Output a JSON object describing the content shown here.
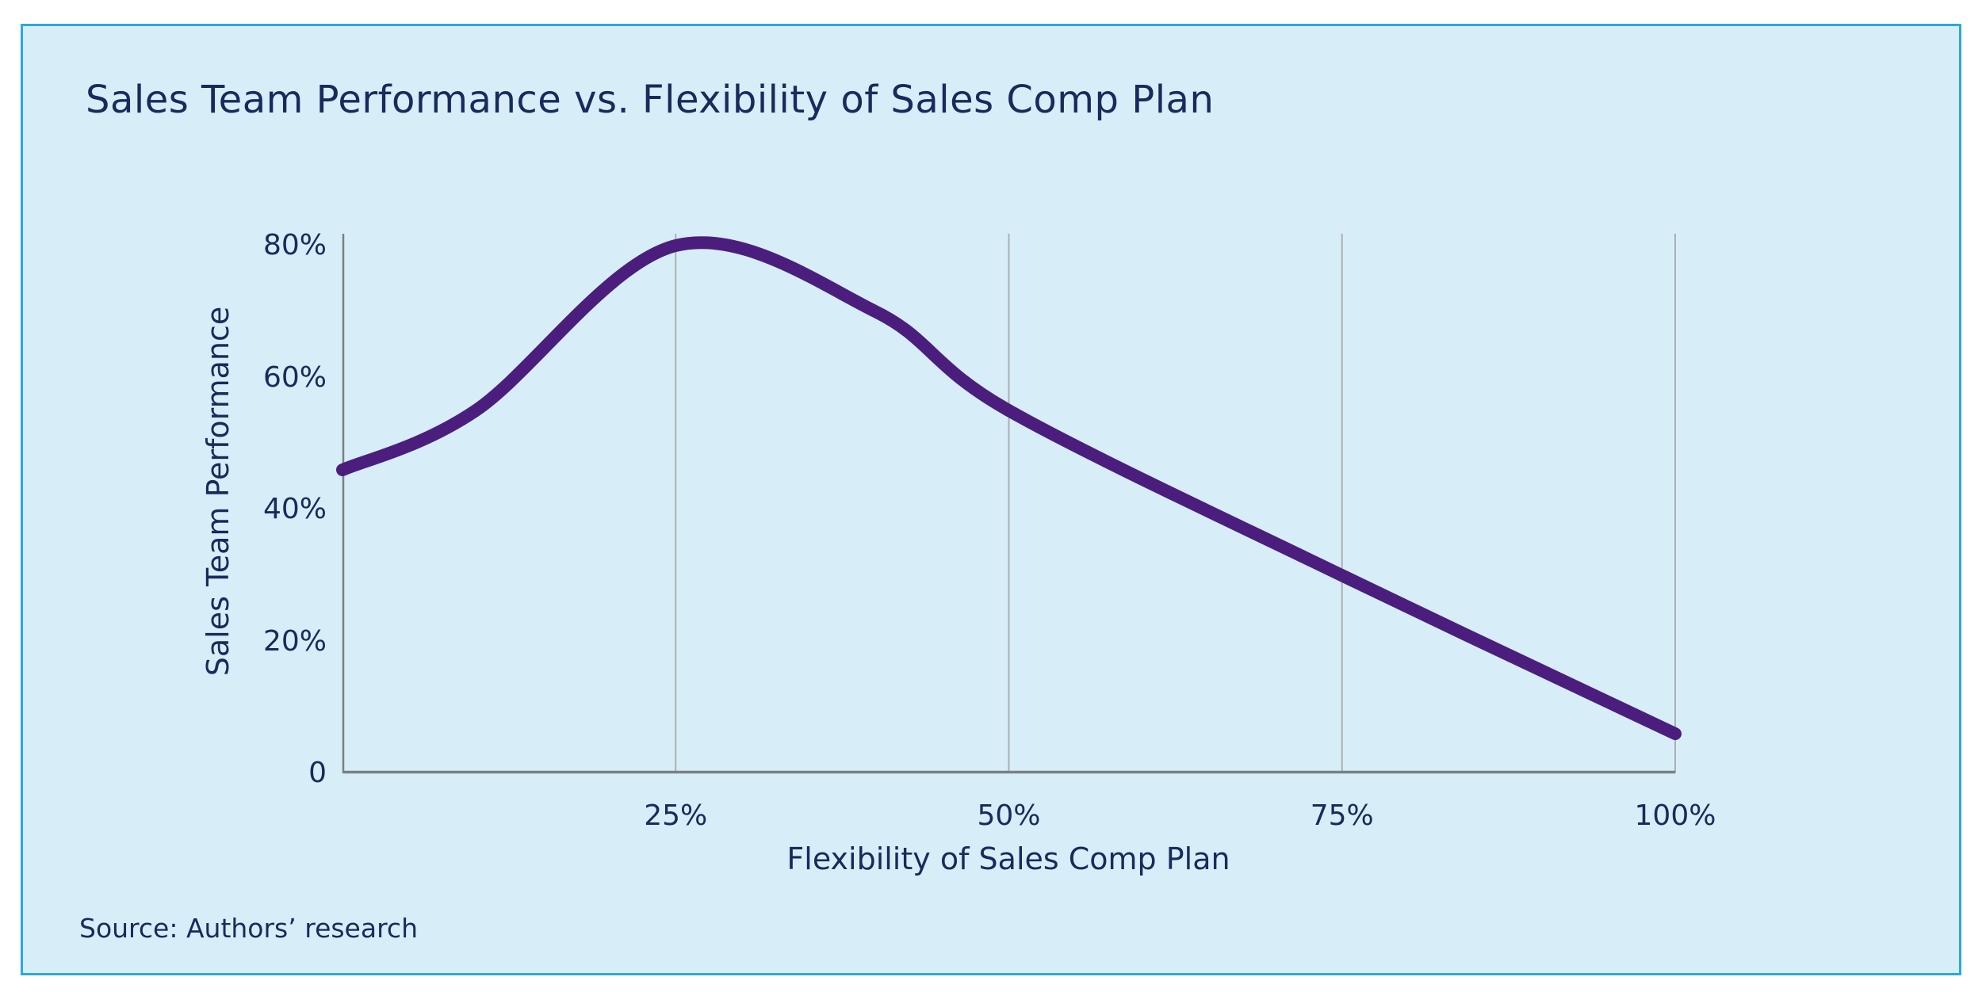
{
  "title": "Sales Team Performance vs. Flexibility of Sales Comp Plan",
  "source": "Source: Authors’ research",
  "colors": {
    "page_background": "#FFFFFF",
    "card_background": "#D7EEF8",
    "card_border": "#29A9E0",
    "text": "#172B5C",
    "line": "#4B1E7E",
    "gridline": "#AFAFAF",
    "axis": "#7A8085"
  },
  "chart_data": {
    "type": "line",
    "title": "Sales Team Performance vs. Flexibility of Sales Comp Plan",
    "xlabel": "Flexibility of Sales Comp Plan",
    "ylabel": "Sales Team Performance",
    "x": [
      0,
      10,
      25,
      40,
      50,
      75,
      100
    ],
    "y": [
      46,
      55,
      80,
      70,
      55,
      30,
      6
    ],
    "xlim": [
      0,
      100
    ],
    "ylim": [
      0,
      80
    ],
    "x_ticks": [
      {
        "value": 25,
        "label": "25%"
      },
      {
        "value": 50,
        "label": "50%"
      },
      {
        "value": 75,
        "label": "75%"
      },
      {
        "value": 100,
        "label": "100%"
      }
    ],
    "y_ticks": [
      {
        "value": 0,
        "label": "0"
      },
      {
        "value": 20,
        "label": "20%"
      },
      {
        "value": 40,
        "label": "40%"
      },
      {
        "value": 60,
        "label": "60%"
      },
      {
        "value": 80,
        "label": "80%"
      }
    ],
    "grid": "vertical",
    "legend": "none",
    "smooth": true,
    "line_width": 16
  }
}
